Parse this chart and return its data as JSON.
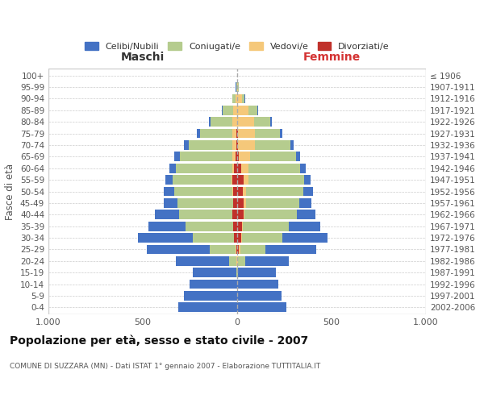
{
  "age_groups": [
    "0-4",
    "5-9",
    "10-14",
    "15-19",
    "20-24",
    "25-29",
    "30-34",
    "35-39",
    "40-44",
    "45-49",
    "50-54",
    "55-59",
    "60-64",
    "65-69",
    "70-74",
    "75-79",
    "80-84",
    "85-89",
    "90-94",
    "95-99",
    "100+"
  ],
  "birth_years": [
    "2002-2006",
    "1997-2001",
    "1992-1996",
    "1987-1991",
    "1982-1986",
    "1977-1981",
    "1972-1976",
    "1967-1971",
    "1962-1966",
    "1957-1961",
    "1952-1956",
    "1947-1951",
    "1942-1946",
    "1937-1941",
    "1932-1936",
    "1927-1931",
    "1922-1926",
    "1917-1921",
    "1912-1916",
    "1907-1911",
    "≤ 1906"
  ],
  "male": {
    "celibi": [
      310,
      280,
      250,
      230,
      280,
      330,
      290,
      200,
      130,
      70,
      55,
      40,
      35,
      30,
      25,
      20,
      10,
      5,
      2,
      2,
      0
    ],
    "coniugati": [
      0,
      0,
      2,
      5,
      40,
      140,
      220,
      250,
      280,
      295,
      310,
      310,
      300,
      280,
      230,
      170,
      115,
      55,
      15,
      3,
      0
    ],
    "vedovi": [
      0,
      0,
      0,
      0,
      2,
      2,
      2,
      2,
      2,
      3,
      5,
      5,
      10,
      15,
      20,
      20,
      25,
      20,
      10,
      2,
      0
    ],
    "divorziati": [
      0,
      0,
      0,
      0,
      2,
      5,
      15,
      20,
      25,
      20,
      20,
      25,
      15,
      10,
      5,
      5,
      0,
      0,
      0,
      0,
      0
    ]
  },
  "female": {
    "nubili": [
      260,
      235,
      215,
      200,
      230,
      270,
      240,
      165,
      100,
      65,
      50,
      35,
      30,
      25,
      20,
      15,
      10,
      5,
      2,
      2,
      0
    ],
    "coniugate": [
      0,
      0,
      2,
      5,
      40,
      135,
      215,
      245,
      275,
      285,
      305,
      295,
      275,
      240,
      185,
      130,
      85,
      45,
      15,
      3,
      0
    ],
    "vedove": [
      0,
      0,
      0,
      0,
      2,
      5,
      5,
      5,
      5,
      10,
      15,
      25,
      40,
      60,
      90,
      90,
      90,
      60,
      25,
      5,
      0
    ],
    "divorziate": [
      0,
      0,
      0,
      0,
      2,
      10,
      20,
      25,
      35,
      35,
      30,
      35,
      20,
      10,
      5,
      5,
      0,
      0,
      0,
      0,
      0
    ]
  },
  "colors": {
    "celibi_nubili": "#4472C4",
    "coniugati": "#b5cc8e",
    "vedovi": "#f5c87a",
    "divorziati": "#c0312b"
  },
  "title": "Popolazione per età, sesso e stato civile - 2007",
  "subtitle": "COMUNE DI SUZZARA (MN) - Dati ISTAT 1° gennaio 2007 - Elaborazione TUTTITALIA.IT",
  "xlabel_left": "Maschi",
  "xlabel_right": "Femmine",
  "ylabel_left": "Fasce di età",
  "xlim": 1000,
  "bg_color": "#ffffff",
  "grid_color": "#cccccc",
  "legend_labels": [
    "Celibi/Nubili",
    "Coniugati/e",
    "Vedovi/e",
    "Divorziati/e"
  ]
}
